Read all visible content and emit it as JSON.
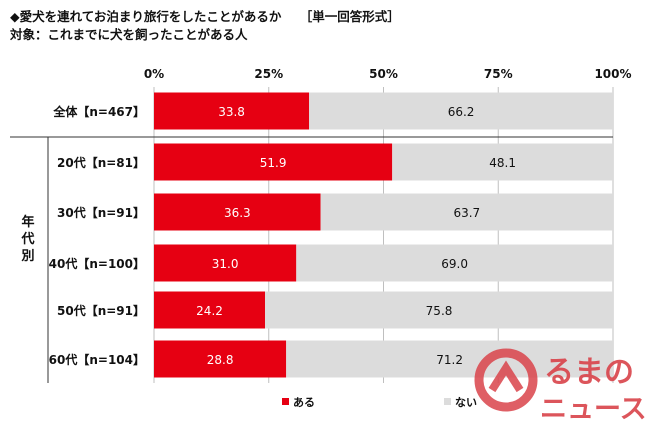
{
  "title": {
    "main": "◆愛犬を連れてお泊まり旅行をしたことがあるか",
    "format": "［単一回答形式］",
    "target": "対象：これまでに犬を飼ったことがある人"
  },
  "chart_data": {
    "type": "bar",
    "orientation": "horizontal",
    "stacked": "percent",
    "x_ticks": [
      "0%",
      "25%",
      "50%",
      "75%",
      "100%"
    ],
    "xlim": [
      0,
      100
    ],
    "group_label": "年代別",
    "categories": [
      "全体【n=467】",
      "20代【n=81】",
      "30代【n=91】",
      "40代【n=100】",
      "50代【n=91】",
      "60代【n=104】"
    ],
    "series": [
      {
        "name": "ある",
        "values": [
          33.8,
          51.9,
          36.3,
          31.0,
          24.2,
          28.8
        ],
        "color": "#e60012"
      },
      {
        "name": "ない",
        "values": [
          66.2,
          48.1,
          63.7,
          69.0,
          75.8,
          71.2
        ],
        "color": "#dcdcdc"
      }
    ],
    "legend_position": "bottom-center",
    "grid": true
  },
  "watermark": {
    "line1": "るまの",
    "line2": "ニュース",
    "color": "#d9434a"
  }
}
